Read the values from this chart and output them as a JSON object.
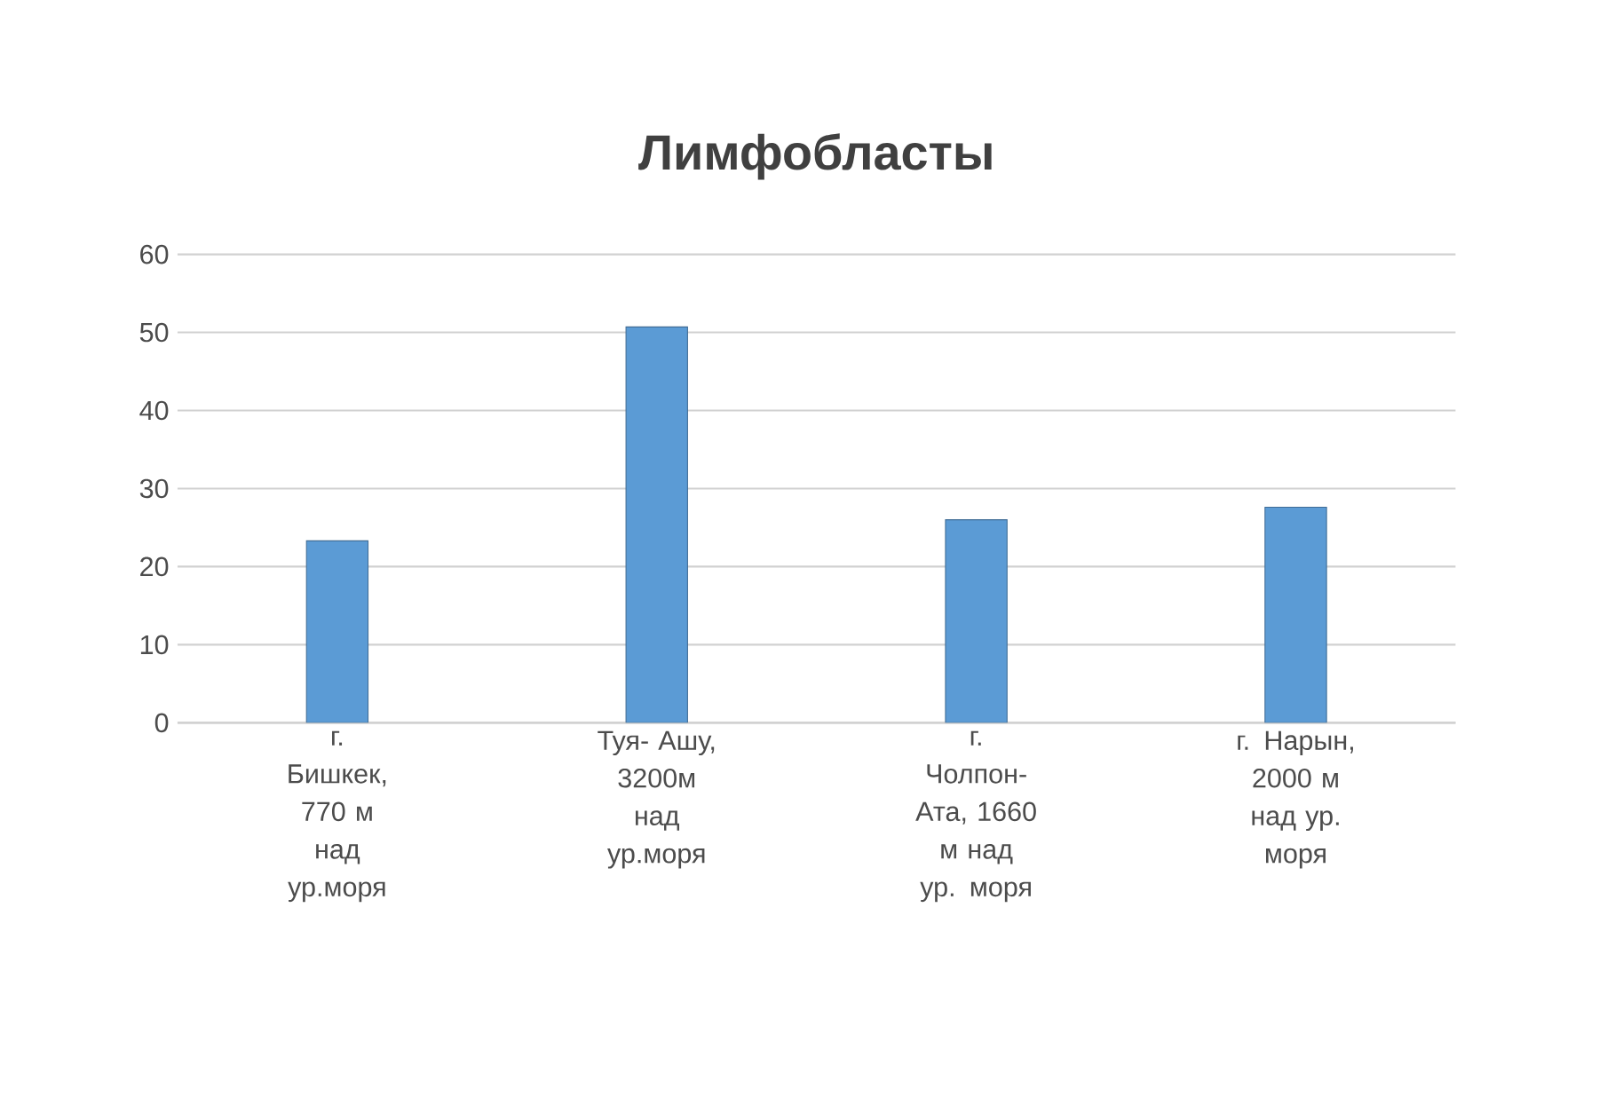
{
  "chart_data": {
    "type": "bar",
    "title": "Лимфобласты",
    "categories": [
      "г. Бишкек, 770 м над ур.моря",
      "Туя- Ашу, 3200м над ур.моря",
      "г. Чолпон- Ата, 1660 м над ур. моря",
      "г. Нарын, 2000 м над ур. моря"
    ],
    "values": [
      23.3,
      50.7,
      26,
      27.6
    ],
    "color": "#5b9bd5",
    "ylim": [
      0,
      60
    ],
    "yticks": [
      0,
      10,
      20,
      30,
      40,
      50,
      60
    ],
    "grid": "y"
  }
}
